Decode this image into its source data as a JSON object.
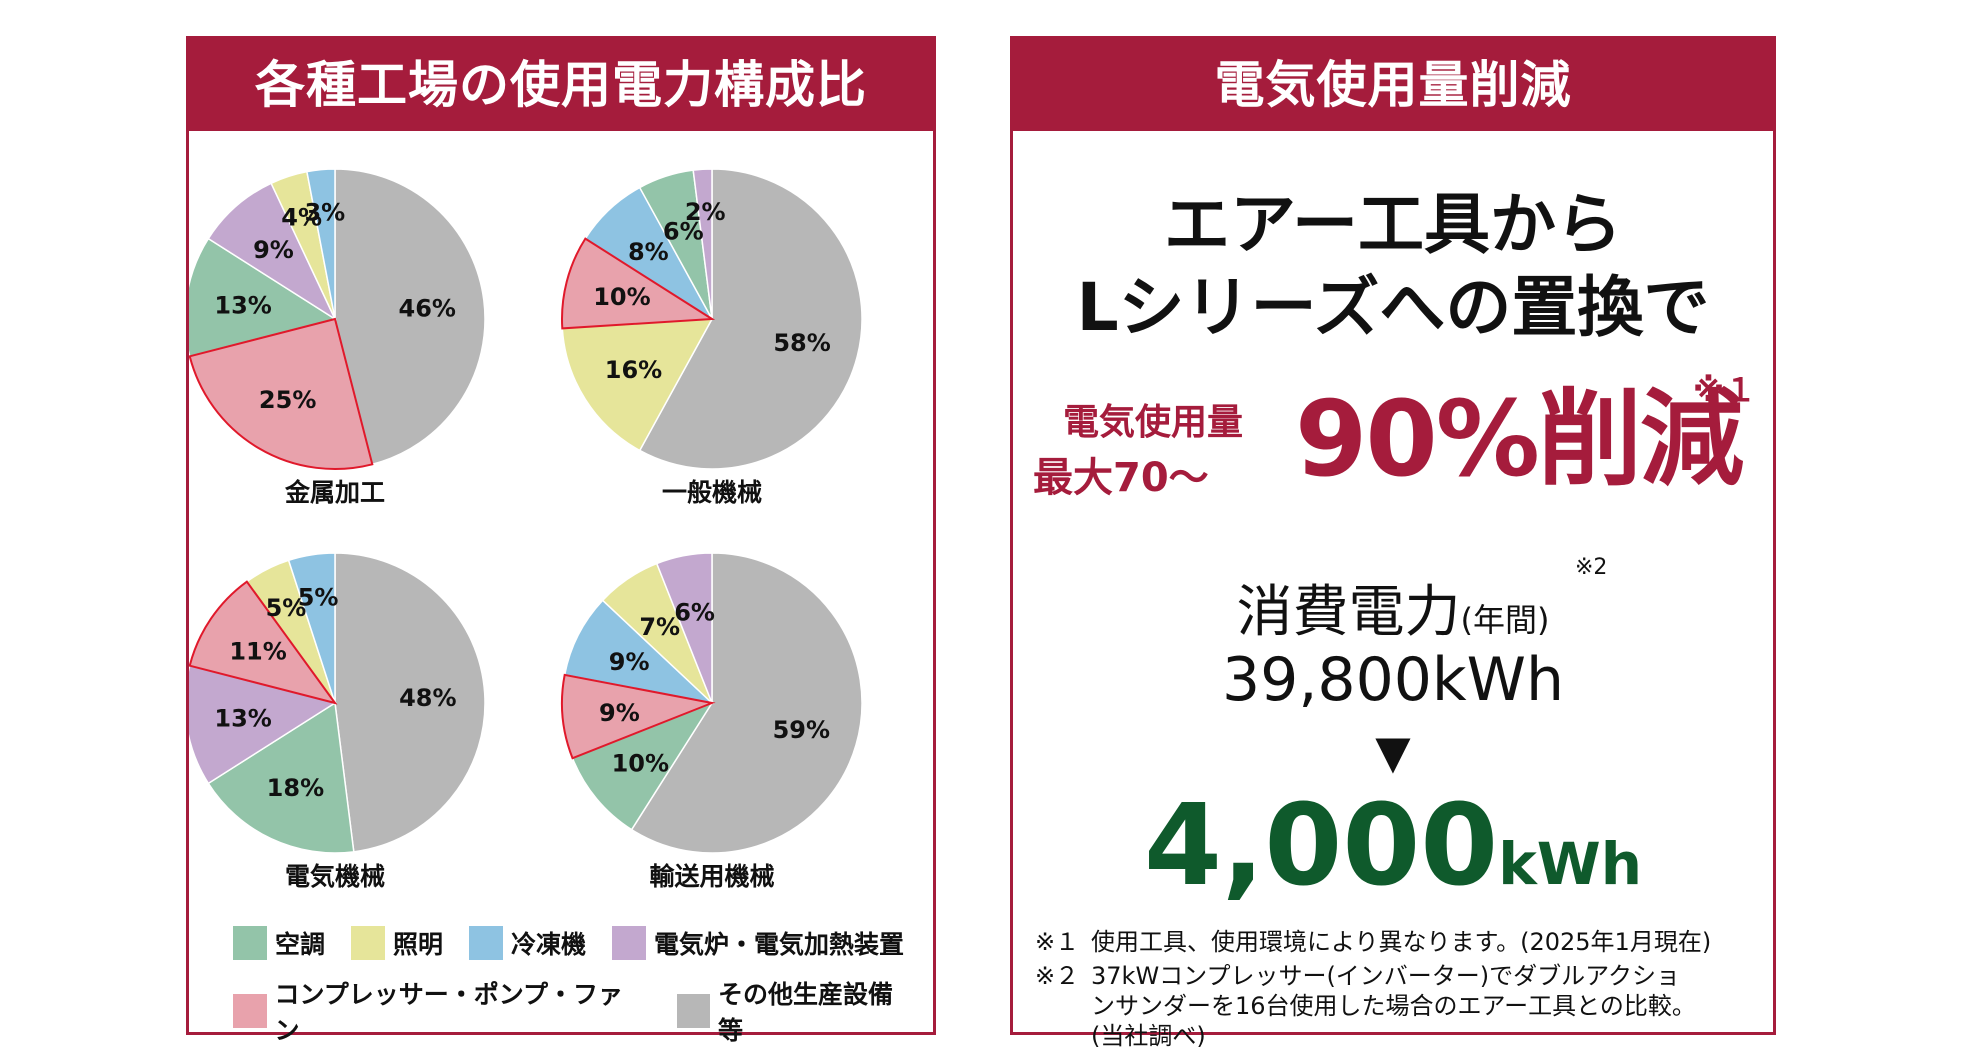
{
  "left_panel": {
    "title": "各種工場の使用電力構成比"
  },
  "right_panel": {
    "title": "電気使用量削減",
    "headline_line1": "エアー工具から",
    "headline_line2": "Lシリーズへの置換で",
    "note1_mark": "※１",
    "reduction_label_line1": "電気使用量",
    "reduction_label_line2": "最大70～",
    "reduction_value": "90%削減",
    "consumption_title": "消費電力",
    "consumption_period": "(年間)",
    "note2_mark": "※2",
    "before_value": "39,800kWh",
    "arrow": "▼",
    "after_value": "4,000",
    "after_unit": "kWh",
    "notes": [
      {
        "mark": "※１",
        "text": "使用工具、使用環境により異なります。(2025年1月現在)"
      },
      {
        "mark": "※２",
        "text": "37kWコンプレッサー(インバーター)でダブルアクショ",
        "cont1": "ンサンダーを16台使用した場合のエアー工具との比較。",
        "cont2": "(当社調べ)"
      }
    ]
  },
  "colors": {
    "brand": "#a51c3c",
    "green_text": "#0f5a2c",
    "categories": {
      "air_conditioning": "#93c4a9",
      "lighting": "#e6e59a",
      "refrigerator": "#8ec3e2",
      "electric_furnace": "#c3a8cf",
      "compressor": "#e8a2ac",
      "other": "#b7b7b7"
    }
  },
  "legend": [
    {
      "key": "air_conditioning",
      "label": "空調"
    },
    {
      "key": "lighting",
      "label": "照明"
    },
    {
      "key": "refrigerator",
      "label": "冷凍機"
    },
    {
      "key": "electric_furnace",
      "label": "電気炉・電気加熱装置"
    },
    {
      "key": "compressor",
      "label": "コンプレッサー・ポンプ・ファン"
    },
    {
      "key": "other",
      "label": "その他生産設備等"
    }
  ],
  "chart_data": [
    {
      "type": "pie",
      "title": "金属加工",
      "slices": [
        {
          "key": "other",
          "value": 46
        },
        {
          "key": "compressor",
          "value": 25
        },
        {
          "key": "air_conditioning",
          "value": 13
        },
        {
          "key": "electric_furnace",
          "value": 9
        },
        {
          "key": "lighting",
          "value": 4
        },
        {
          "key": "refrigerator",
          "value": 3
        }
      ]
    },
    {
      "type": "pie",
      "title": "一般機械",
      "slices": [
        {
          "key": "other",
          "value": 58
        },
        {
          "key": "lighting",
          "value": 16
        },
        {
          "key": "compressor",
          "value": 10
        },
        {
          "key": "refrigerator",
          "value": 8
        },
        {
          "key": "air_conditioning",
          "value": 6
        },
        {
          "key": "electric_furnace",
          "value": 2
        }
      ]
    },
    {
      "type": "pie",
      "title": "電気機械",
      "slices": [
        {
          "key": "other",
          "value": 48
        },
        {
          "key": "air_conditioning",
          "value": 18
        },
        {
          "key": "electric_furnace",
          "value": 13
        },
        {
          "key": "compressor",
          "value": 11
        },
        {
          "key": "lighting",
          "value": 5
        },
        {
          "key": "refrigerator",
          "value": 5
        }
      ]
    },
    {
      "type": "pie",
      "title": "輸送用機械",
      "slices": [
        {
          "key": "other",
          "value": 59
        },
        {
          "key": "air_conditioning",
          "value": 10
        },
        {
          "key": "compressor",
          "value": 9
        },
        {
          "key": "refrigerator",
          "value": 9
        },
        {
          "key": "lighting",
          "value": 7
        },
        {
          "key": "electric_furnace",
          "value": 6
        }
      ]
    }
  ]
}
